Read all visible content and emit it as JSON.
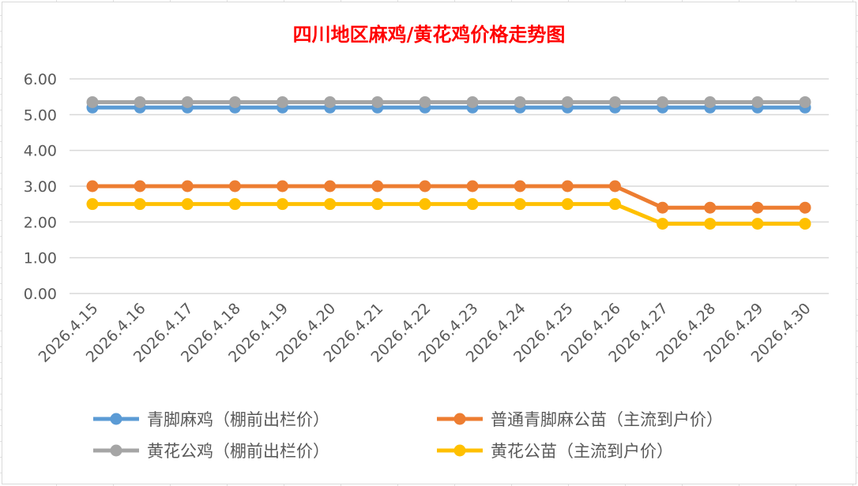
{
  "chart_data": {
    "type": "line",
    "title": "四川地区麻鸡/黄花鸡价格走势图",
    "title_color": "#ff0000",
    "xlabel": "",
    "ylabel": "",
    "ylim": [
      0,
      6
    ],
    "yticks": [
      "0.00",
      "1.00",
      "2.00",
      "3.00",
      "4.00",
      "5.00",
      "6.00"
    ],
    "grid": true,
    "legend_position": "bottom",
    "categories": [
      "2026.4.15",
      "2026.4.16",
      "2026.4.17",
      "2026.4.18",
      "2026.4.19",
      "2026.4.20",
      "2026.4.21",
      "2026.4.22",
      "2026.4.23",
      "2026.4.24",
      "2026.4.25",
      "2026.4.26",
      "2026.4.27",
      "2026.4.28",
      "2026.4.29",
      "2026.4.30"
    ],
    "series": [
      {
        "name": "青脚麻鸡（棚前出栏价）",
        "color": "#5b9bd5",
        "values": [
          5.2,
          5.2,
          5.2,
          5.2,
          5.2,
          5.2,
          5.2,
          5.2,
          5.2,
          5.2,
          5.2,
          5.2,
          5.2,
          5.2,
          5.2,
          5.2
        ]
      },
      {
        "name": "普通青脚麻公苗（主流到户价）",
        "color": "#ed7d31",
        "values": [
          3.0,
          3.0,
          3.0,
          3.0,
          3.0,
          3.0,
          3.0,
          3.0,
          3.0,
          3.0,
          3.0,
          3.0,
          2.4,
          2.4,
          2.4,
          2.4
        ]
      },
      {
        "name": "黄花公鸡（棚前出栏价）",
        "color": "#a5a5a5",
        "values": [
          5.35,
          5.35,
          5.35,
          5.35,
          5.35,
          5.35,
          5.35,
          5.35,
          5.35,
          5.35,
          5.35,
          5.35,
          5.35,
          5.35,
          5.35,
          5.35
        ]
      },
      {
        "name": "黄花公苗（主流到户价）",
        "color": "#ffc000",
        "values": [
          2.5,
          2.5,
          2.5,
          2.5,
          2.5,
          2.5,
          2.5,
          2.5,
          2.5,
          2.5,
          2.5,
          2.5,
          1.95,
          1.95,
          1.95,
          1.95
        ]
      }
    ]
  }
}
